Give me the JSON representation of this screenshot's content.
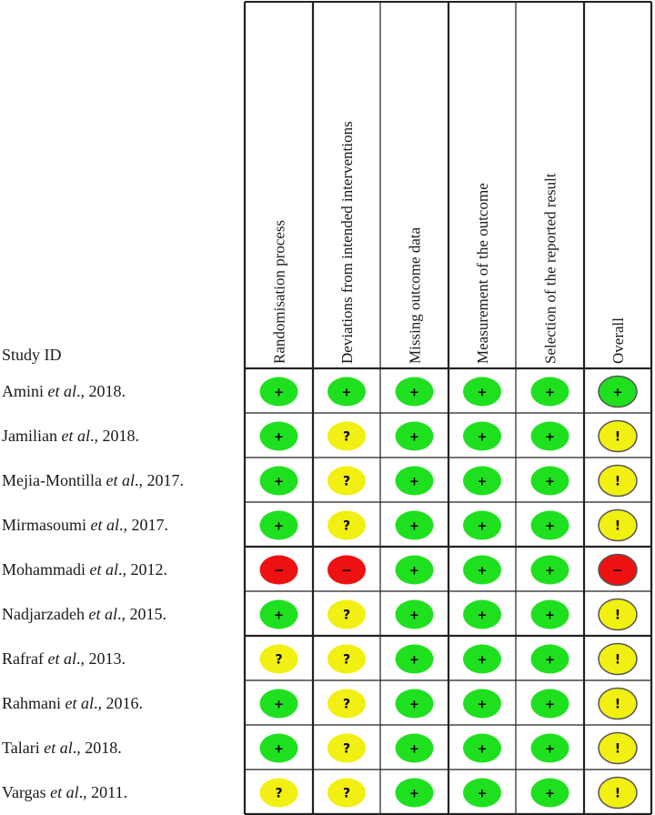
{
  "chart_data": {
    "type": "table",
    "title": "",
    "row_header": "Study ID",
    "columns": [
      "Randomisation process",
      "Deviations from intended interventions",
      "Missing outcome data",
      "Measurement of the outcome",
      "Selection of the reported result",
      "Overall"
    ],
    "rows": [
      {
        "author": "Amini",
        "suffix": ", 2018."
      },
      {
        "author": "Jamilian",
        "suffix": ", 2018."
      },
      {
        "author": "Mejia-Montilla",
        "suffix": ", 2017."
      },
      {
        "author": "Mirmasoumi",
        "suffix": ", 2017."
      },
      {
        "author": "Mohammadi",
        "suffix": ", 2012."
      },
      {
        "author": "Nadjarzadeh",
        "suffix": ", 2015."
      },
      {
        "author": "Rafraf",
        "suffix": ", 2013."
      },
      {
        "author": "Rahmani",
        "suffix": ", 2016."
      },
      {
        "author": "Talari",
        "suffix": ", 2018."
      },
      {
        "author": "Vargas",
        "suffix": ", 2011."
      }
    ],
    "etal": "et al.",
    "judgements": [
      [
        "low",
        "low",
        "low",
        "low",
        "low",
        "low"
      ],
      [
        "low",
        "some",
        "low",
        "low",
        "low",
        "some"
      ],
      [
        "low",
        "some",
        "low",
        "low",
        "low",
        "some"
      ],
      [
        "low",
        "some",
        "low",
        "low",
        "low",
        "some"
      ],
      [
        "high",
        "high",
        "low",
        "low",
        "low",
        "high"
      ],
      [
        "low",
        "some",
        "low",
        "low",
        "low",
        "some"
      ],
      [
        "some",
        "some",
        "low",
        "low",
        "low",
        "some"
      ],
      [
        "low",
        "some",
        "low",
        "low",
        "low",
        "some"
      ],
      [
        "low",
        "some",
        "low",
        "low",
        "low",
        "some"
      ],
      [
        "some",
        "some",
        "low",
        "low",
        "low",
        "some"
      ]
    ],
    "symbols": {
      "low": "+",
      "some": "?",
      "high": "−",
      "overall_some": "!"
    },
    "colors": {
      "low": "#1fe01f",
      "some": "#f2ef12",
      "high": "#ee1111",
      "grid": "#222222"
    }
  }
}
